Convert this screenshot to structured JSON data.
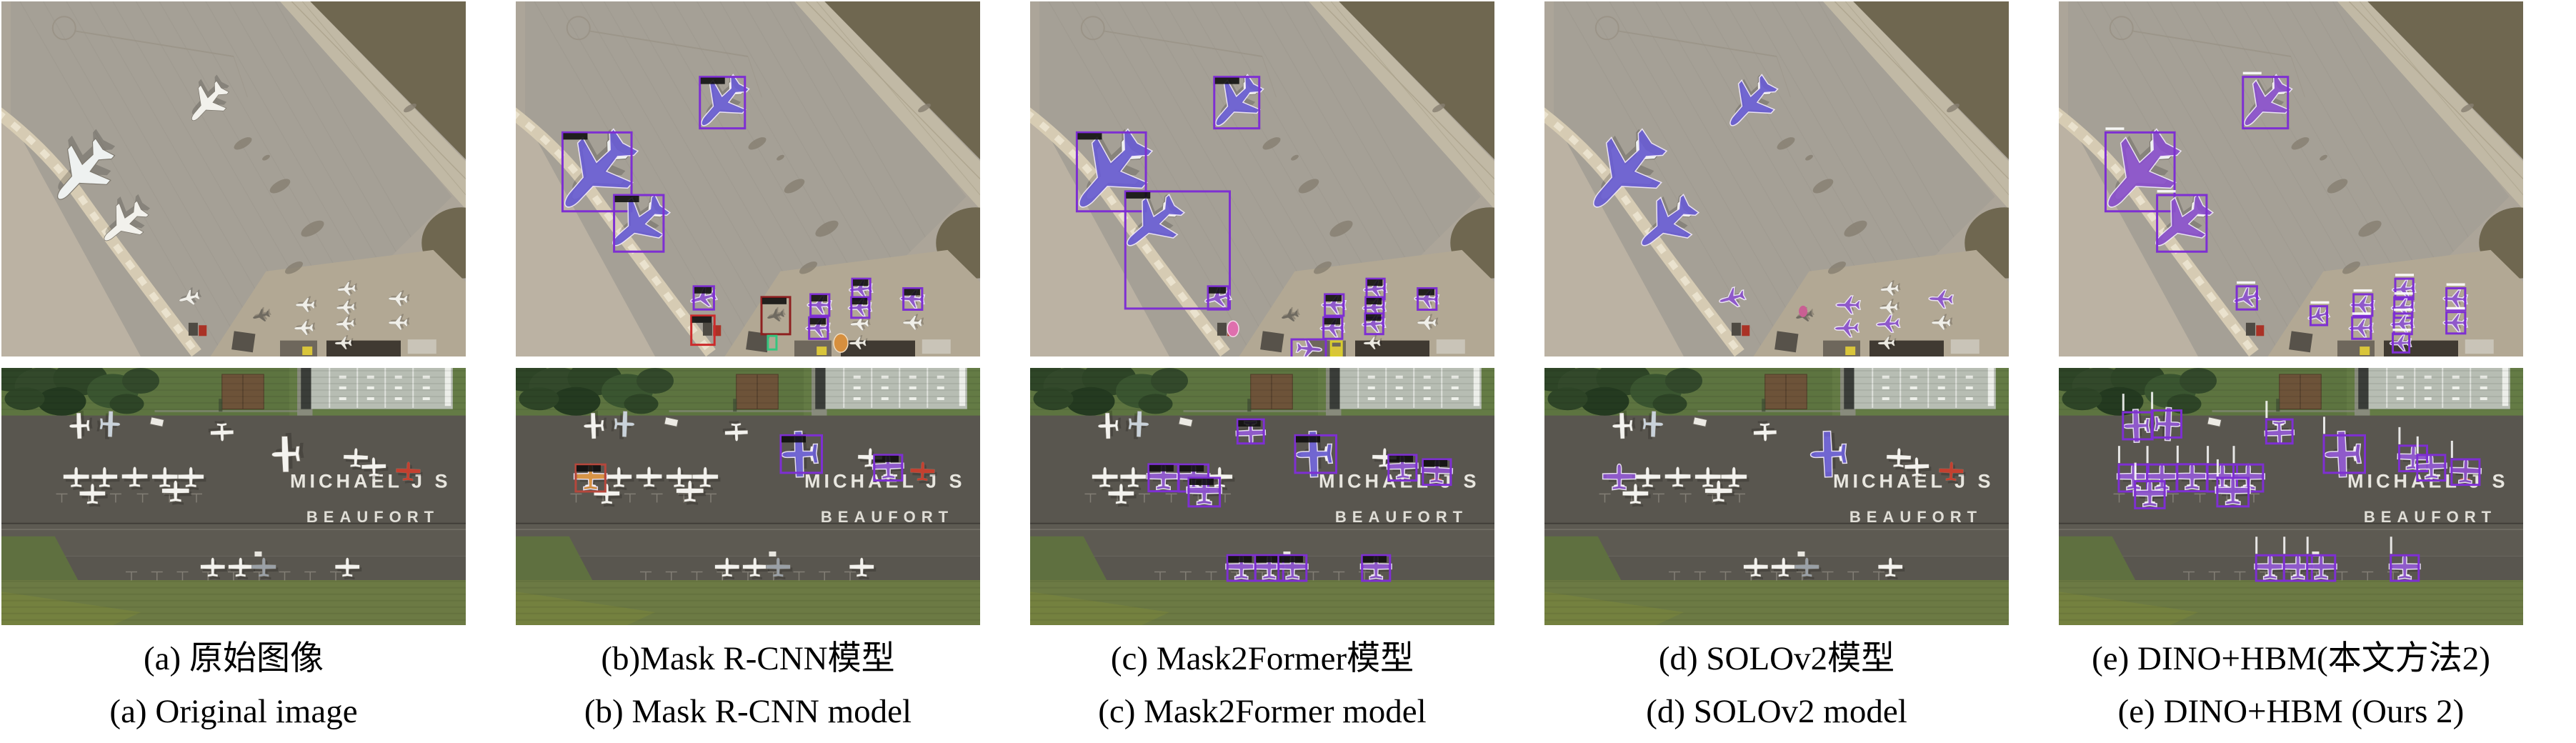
{
  "panels": [
    {
      "key": "a",
      "caption_zh": "(a) 原始图像",
      "caption_en": "(a) Original image",
      "top": {
        "mode": "none",
        "detections": [],
        "extras": []
      },
      "bottom": {
        "mode": "none",
        "detections": [],
        "extras": []
      }
    },
    {
      "key": "b",
      "caption_zh": "(b)Mask R-CNN模型",
      "caption_en": "(b) Mask R-CNN model",
      "top": {
        "mode": "boxes+masks",
        "label_style": "black",
        "detections": [
          0,
          1,
          2,
          3,
          4,
          5,
          6,
          7,
          9
        ],
        "extras": [
          "red-box-vehicles",
          "dark-red-box-plane",
          "green-box-small",
          "orange-mask-blob"
        ]
      },
      "bottom": {
        "mode": "boxes+masks",
        "label_style": "black",
        "detections": [
          3,
          5
        ],
        "extras": [
          "orange-masked-plane"
        ]
      }
    },
    {
      "key": "c",
      "caption_zh": "(c) Mask2Former模型",
      "caption_en": "(c) Mask2Former model",
      "top": {
        "mode": "boxes+masks",
        "label_style": "black",
        "detections": [
          0,
          1,
          2,
          3,
          4,
          5,
          6,
          7,
          8,
          9
        ],
        "tall_false_box": true,
        "extras": [
          "pink-mask-vehicle",
          "yellow-box-vehicle",
          "bottom-edge-masked-blob"
        ]
      },
      "bottom": {
        "mode": "boxes+masks",
        "label_style": "black",
        "detections": [
          2,
          3,
          5,
          6,
          9,
          10,
          13,
          14,
          15,
          16,
          17
        ],
        "extras": []
      }
    },
    {
      "key": "d",
      "caption_zh": "(d) SOLOv2模型",
      "caption_en": "(d) SOLOv2 model",
      "top": {
        "mode": "masks",
        "detections": [
          0,
          1,
          2,
          3,
          4,
          5,
          8,
          9
        ],
        "extras": [
          "pink-dot"
        ]
      },
      "bottom": {
        "mode": "masks",
        "detections": [
          3,
          7
        ],
        "extras": []
      }
    },
    {
      "key": "e",
      "caption_zh": "(e) DINO+HBM(本文方法2)",
      "caption_en": "(e) DINO+HBM (Ours 2)",
      "top": {
        "mode": "boxes+masks",
        "label_style": "white",
        "detections": [
          0,
          1,
          2,
          3,
          4,
          5,
          6,
          7,
          8,
          9,
          10,
          11,
          12
        ],
        "extras": []
      },
      "bottom": {
        "mode": "boxes+masks",
        "label_style": "white",
        "detections": [
          0,
          1,
          2,
          3,
          4,
          5,
          6,
          7,
          8,
          9,
          10,
          11,
          12,
          13,
          14,
          15,
          16,
          17
        ],
        "extras": []
      }
    }
  ],
  "scene_text": {
    "tarmac_line1": "MICHAEL J S",
    "tarmac_line2": "BEAUFORT"
  },
  "colors": {
    "mask_purple": "#8a52c9",
    "mask_blue": "#6b5fd0",
    "mask_outline": "#eee6f8",
    "box_purple": "#7e2fd2",
    "box_red": "#cc2b2b",
    "box_dark_red": "#8e2020",
    "box_green": "#35c57f",
    "box_yellow": "#d8cc2e",
    "mask_orange": "#d68f3e",
    "mask_pink": "#df6fae",
    "label_black": "#0d0d0d",
    "label_white": "#ffffff"
  }
}
